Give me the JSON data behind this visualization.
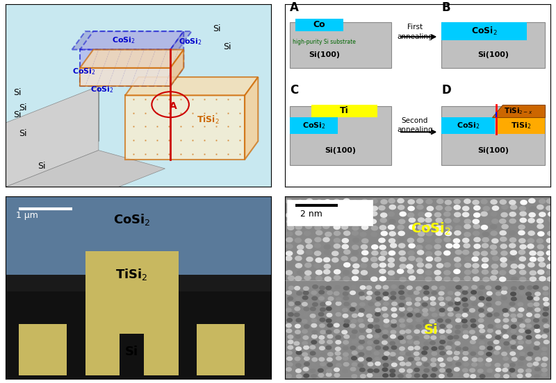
{
  "title": "",
  "bg_color": "#ffffff",
  "panel_A_label": "A",
  "panel_B_label": "B",
  "panel_C_label": "C",
  "panel_D_label": "D",
  "co_color": "#00ccff",
  "cosi2_color": "#00ccff",
  "ti_color": "#ffff00",
  "tisi2_color": "#ffaa00",
  "tisi2x_color": "#cc6600",
  "si_substrate_color": "#c0c0c0",
  "si_substrate_dark": "#aaaaaa",
  "substrate_bg": "#d3d3d3",
  "schematic_bg": "#c8e8f0",
  "schematic_bg2": "#ddeeff",
  "orange_box": "#cc6600",
  "blue_box": "#0000cc",
  "red_line": "#cc0000",
  "annotation_A": "A",
  "first_annealing": "First\nannealing",
  "second_annealing": "Second\nannealing",
  "si100": "Si(100)",
  "high_purity": "high-purity Si substrate",
  "green_text": "#006600",
  "black_text": "#000000",
  "font_size_label": 11,
  "font_size_panel": 12,
  "font_size_formula": 10
}
